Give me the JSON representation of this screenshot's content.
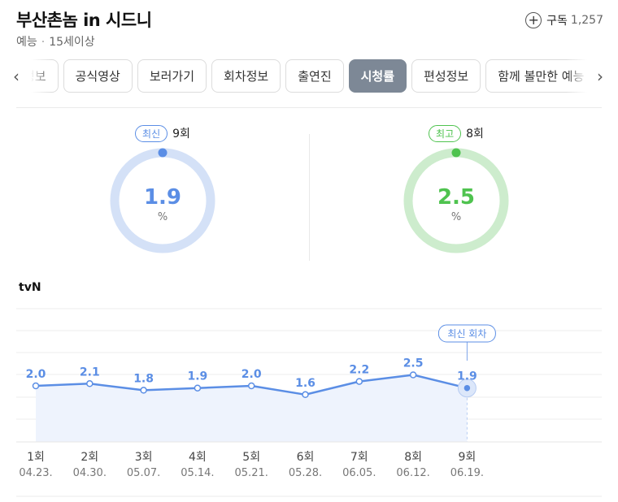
{
  "header": {
    "title": "부산촌놈 in 시드니",
    "genre": "예능",
    "separator": "·",
    "rating": "15세이상",
    "subscribe_label": "구독",
    "subscribe_count": "1,257"
  },
  "tabs": {
    "items": [
      {
        "label": "정보",
        "active": false
      },
      {
        "label": "공식영상",
        "active": false
      },
      {
        "label": "보러가기",
        "active": false
      },
      {
        "label": "회차정보",
        "active": false
      },
      {
        "label": "출연진",
        "active": false
      },
      {
        "label": "시청률",
        "active": true
      },
      {
        "label": "편성정보",
        "active": false
      },
      {
        "label": "함께 볼만한 예능",
        "active": false
      }
    ],
    "prev_icon": "chevron-left-icon",
    "next_icon": "chevron-right-icon"
  },
  "summary": {
    "latest": {
      "badge": "최신",
      "episode": "9회",
      "value": "1.9",
      "unit": "%",
      "color": "#5b8ee5",
      "track_color": "#d4e1f7"
    },
    "best": {
      "badge": "최고",
      "episode": "8회",
      "value": "2.5",
      "unit": "%",
      "color": "#4fc34f",
      "track_color": "#cdeccd"
    }
  },
  "chart_data": {
    "type": "line",
    "channel": "tvN",
    "categories": [
      "1회",
      "2회",
      "3회",
      "4회",
      "5회",
      "6회",
      "7회",
      "8회",
      "9회"
    ],
    "dates": [
      "04.23.",
      "04.30.",
      "05.07.",
      "05.14.",
      "05.21.",
      "05.28.",
      "06.05.",
      "06.12.",
      "06.19."
    ],
    "series": [
      {
        "values": [
          2.0,
          2.1,
          1.8,
          1.9,
          2.0,
          1.6,
          2.2,
          2.5,
          1.9
        ]
      }
    ],
    "value_labels": [
      "2.0",
      "2.1",
      "1.8",
      "1.9",
      "2.0",
      "1.6",
      "2.2",
      "2.5",
      "1.9"
    ],
    "highlight_label": "최신 회차",
    "highlight_index": 8,
    "line_color": "#5b8ee5",
    "area_color": "#eef3fd",
    "grid": true
  }
}
